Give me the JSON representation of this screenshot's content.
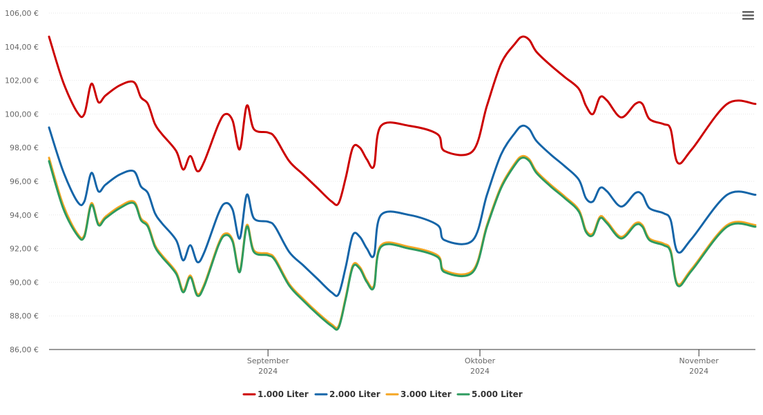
{
  "menu": {
    "icon": "hamburger-menu-icon"
  },
  "chart_data": {
    "type": "line",
    "x_start": "2024-08-01",
    "y_range": [
      86,
      106
    ],
    "y_ticks": [
      86,
      88,
      90,
      92,
      94,
      96,
      98,
      100,
      102,
      104,
      106
    ],
    "y_tick_labels": [
      "86,00 €",
      "88,00 €",
      "90,00 €",
      "92,00 €",
      "94,00 €",
      "96,00 €",
      "98,00 €",
      "100,00 €",
      "102,00 €",
      "104,00 €",
      "106,00 €"
    ],
    "x_ticks": [
      {
        "date": "2024-09-01",
        "label": "September",
        "year": "2024"
      },
      {
        "date": "2024-10-01",
        "label": "Oktober",
        "year": "2024"
      },
      {
        "date": "2024-11-01",
        "label": "November",
        "year": "2024"
      }
    ],
    "grid": true,
    "legend_position": "bottom-center",
    "series": [
      {
        "name": "1.000 Liter",
        "color": "#cc0000",
        "points": [
          [
            "2024-08-01",
            104.6
          ],
          [
            "2024-08-03",
            101.9
          ],
          [
            "2024-08-05",
            100.1
          ],
          [
            "2024-08-06",
            100.0
          ],
          [
            "2024-08-07",
            101.8
          ],
          [
            "2024-08-08",
            100.7
          ],
          [
            "2024-08-09",
            101.1
          ],
          [
            "2024-08-11",
            101.7
          ],
          [
            "2024-08-13",
            101.9
          ],
          [
            "2024-08-14",
            101.0
          ],
          [
            "2024-08-15",
            100.6
          ],
          [
            "2024-08-16",
            99.4
          ],
          [
            "2024-08-17",
            98.8
          ],
          [
            "2024-08-19",
            97.8
          ],
          [
            "2024-08-20",
            96.7
          ],
          [
            "2024-08-21",
            97.5
          ],
          [
            "2024-08-22",
            96.6
          ],
          [
            "2024-08-23",
            97.2
          ],
          [
            "2024-08-25",
            99.4
          ],
          [
            "2024-08-26",
            100.0
          ],
          [
            "2024-08-27",
            99.6
          ],
          [
            "2024-08-28",
            97.9
          ],
          [
            "2024-08-29",
            100.5
          ],
          [
            "2024-08-30",
            99.1
          ],
          [
            "2024-09-01",
            98.9
          ],
          [
            "2024-09-02",
            98.6
          ],
          [
            "2024-09-04",
            97.2
          ],
          [
            "2024-09-06",
            96.4
          ],
          [
            "2024-09-08",
            95.6
          ],
          [
            "2024-09-10",
            94.8
          ],
          [
            "2024-09-11",
            94.7
          ],
          [
            "2024-09-12",
            96.2
          ],
          [
            "2024-09-13",
            98.0
          ],
          [
            "2024-09-14",
            98.0
          ],
          [
            "2024-09-15",
            97.3
          ],
          [
            "2024-09-16",
            96.9
          ],
          [
            "2024-09-17",
            99.3
          ],
          [
            "2024-09-21",
            99.3
          ],
          [
            "2024-09-25",
            98.8
          ],
          [
            "2024-09-26",
            97.8
          ],
          [
            "2024-09-30",
            97.8
          ],
          [
            "2024-10-02",
            100.5
          ],
          [
            "2024-10-04",
            103.0
          ],
          [
            "2024-10-06",
            104.2
          ],
          [
            "2024-10-07",
            104.6
          ],
          [
            "2024-10-08",
            104.4
          ],
          [
            "2024-10-09",
            103.7
          ],
          [
            "2024-10-11",
            102.9
          ],
          [
            "2024-10-13",
            102.2
          ],
          [
            "2024-10-15",
            101.5
          ],
          [
            "2024-10-16",
            100.5
          ],
          [
            "2024-10-17",
            100.0
          ],
          [
            "2024-10-18",
            101.0
          ],
          [
            "2024-10-19",
            100.8
          ],
          [
            "2024-10-21",
            99.8
          ],
          [
            "2024-10-23",
            100.6
          ],
          [
            "2024-10-24",
            100.6
          ],
          [
            "2024-10-25",
            99.7
          ],
          [
            "2024-10-27",
            99.4
          ],
          [
            "2024-10-28",
            99.1
          ],
          [
            "2024-10-29",
            97.1
          ],
          [
            "2024-10-31",
            97.9
          ],
          [
            "2024-11-05",
            100.6
          ],
          [
            "2024-11-09",
            100.6
          ]
        ]
      },
      {
        "name": "2.000 Liter",
        "color": "#1565a8",
        "points": [
          [
            "2024-08-01",
            99.2
          ],
          [
            "2024-08-03",
            96.6
          ],
          [
            "2024-08-05",
            94.8
          ],
          [
            "2024-08-06",
            94.8
          ],
          [
            "2024-08-07",
            96.5
          ],
          [
            "2024-08-08",
            95.4
          ],
          [
            "2024-08-09",
            95.8
          ],
          [
            "2024-08-11",
            96.4
          ],
          [
            "2024-08-13",
            96.6
          ],
          [
            "2024-08-14",
            95.7
          ],
          [
            "2024-08-15",
            95.3
          ],
          [
            "2024-08-16",
            94.1
          ],
          [
            "2024-08-17",
            93.5
          ],
          [
            "2024-08-19",
            92.5
          ],
          [
            "2024-08-20",
            91.3
          ],
          [
            "2024-08-21",
            92.2
          ],
          [
            "2024-08-22",
            91.2
          ],
          [
            "2024-08-23",
            91.8
          ],
          [
            "2024-08-25",
            94.1
          ],
          [
            "2024-08-26",
            94.7
          ],
          [
            "2024-08-27",
            94.3
          ],
          [
            "2024-08-28",
            92.6
          ],
          [
            "2024-08-29",
            95.2
          ],
          [
            "2024-08-30",
            93.8
          ],
          [
            "2024-09-01",
            93.6
          ],
          [
            "2024-09-02",
            93.3
          ],
          [
            "2024-09-04",
            91.8
          ],
          [
            "2024-09-06",
            91.0
          ],
          [
            "2024-09-08",
            90.2
          ],
          [
            "2024-09-10",
            89.4
          ],
          [
            "2024-09-11",
            89.3
          ],
          [
            "2024-09-12",
            90.9
          ],
          [
            "2024-09-13",
            92.8
          ],
          [
            "2024-09-14",
            92.7
          ],
          [
            "2024-09-15",
            92.0
          ],
          [
            "2024-09-16",
            91.6
          ],
          [
            "2024-09-17",
            94.0
          ],
          [
            "2024-09-21",
            94.0
          ],
          [
            "2024-09-25",
            93.4
          ],
          [
            "2024-09-26",
            92.5
          ],
          [
            "2024-09-30",
            92.5
          ],
          [
            "2024-10-02",
            95.2
          ],
          [
            "2024-10-04",
            97.6
          ],
          [
            "2024-10-06",
            98.9
          ],
          [
            "2024-10-07",
            99.3
          ],
          [
            "2024-10-08",
            99.1
          ],
          [
            "2024-10-09",
            98.4
          ],
          [
            "2024-10-11",
            97.6
          ],
          [
            "2024-10-13",
            96.9
          ],
          [
            "2024-10-15",
            96.1
          ],
          [
            "2024-10-16",
            95.0
          ],
          [
            "2024-10-17",
            94.8
          ],
          [
            "2024-10-18",
            95.6
          ],
          [
            "2024-10-19",
            95.4
          ],
          [
            "2024-10-21",
            94.5
          ],
          [
            "2024-10-23",
            95.3
          ],
          [
            "2024-10-24",
            95.2
          ],
          [
            "2024-10-25",
            94.4
          ],
          [
            "2024-10-27",
            94.1
          ],
          [
            "2024-10-28",
            93.7
          ],
          [
            "2024-10-29",
            91.8
          ],
          [
            "2024-10-31",
            92.6
          ],
          [
            "2024-11-05",
            95.2
          ],
          [
            "2024-11-09",
            95.2
          ]
        ]
      },
      {
        "name": "3.000 Liter",
        "color": "#f5a623",
        "points": [
          [
            "2024-08-01",
            97.4
          ],
          [
            "2024-08-03",
            94.6
          ],
          [
            "2024-08-05",
            92.9
          ],
          [
            "2024-08-06",
            92.8
          ],
          [
            "2024-08-07",
            94.7
          ],
          [
            "2024-08-08",
            93.5
          ],
          [
            "2024-08-09",
            93.9
          ],
          [
            "2024-08-11",
            94.5
          ],
          [
            "2024-08-13",
            94.8
          ],
          [
            "2024-08-14",
            93.8
          ],
          [
            "2024-08-15",
            93.4
          ],
          [
            "2024-08-16",
            92.2
          ],
          [
            "2024-08-17",
            91.6
          ],
          [
            "2024-08-19",
            90.6
          ],
          [
            "2024-08-20",
            89.5
          ],
          [
            "2024-08-21",
            90.4
          ],
          [
            "2024-08-22",
            89.3
          ],
          [
            "2024-08-23",
            89.9
          ],
          [
            "2024-08-25",
            92.3
          ],
          [
            "2024-08-26",
            92.9
          ],
          [
            "2024-08-27",
            92.5
          ],
          [
            "2024-08-28",
            90.7
          ],
          [
            "2024-08-29",
            93.4
          ],
          [
            "2024-08-30",
            91.9
          ],
          [
            "2024-09-01",
            91.7
          ],
          [
            "2024-09-02",
            91.4
          ],
          [
            "2024-09-04",
            89.9
          ],
          [
            "2024-09-06",
            89.0
          ],
          [
            "2024-09-08",
            88.2
          ],
          [
            "2024-09-10",
            87.5
          ],
          [
            "2024-09-11",
            87.4
          ],
          [
            "2024-09-12",
            89.1
          ],
          [
            "2024-09-13",
            91.0
          ],
          [
            "2024-09-14",
            90.9
          ],
          [
            "2024-09-15",
            90.1
          ],
          [
            "2024-09-16",
            89.8
          ],
          [
            "2024-09-17",
            92.2
          ],
          [
            "2024-09-21",
            92.1
          ],
          [
            "2024-09-25",
            91.6
          ],
          [
            "2024-09-26",
            90.7
          ],
          [
            "2024-09-30",
            90.7
          ],
          [
            "2024-10-02",
            93.4
          ],
          [
            "2024-10-04",
            95.7
          ],
          [
            "2024-10-06",
            97.1
          ],
          [
            "2024-10-07",
            97.5
          ],
          [
            "2024-10-08",
            97.3
          ],
          [
            "2024-10-09",
            96.6
          ],
          [
            "2024-10-11",
            95.8
          ],
          [
            "2024-10-13",
            95.1
          ],
          [
            "2024-10-15",
            94.3
          ],
          [
            "2024-10-16",
            93.1
          ],
          [
            "2024-10-17",
            92.9
          ],
          [
            "2024-10-18",
            93.9
          ],
          [
            "2024-10-19",
            93.6
          ],
          [
            "2024-10-21",
            92.7
          ],
          [
            "2024-10-23",
            93.5
          ],
          [
            "2024-10-24",
            93.4
          ],
          [
            "2024-10-25",
            92.6
          ],
          [
            "2024-10-27",
            92.3
          ],
          [
            "2024-10-28",
            91.9
          ],
          [
            "2024-10-29",
            89.9
          ],
          [
            "2024-10-31",
            90.8
          ],
          [
            "2024-11-05",
            93.4
          ],
          [
            "2024-11-09",
            93.4
          ]
        ]
      },
      {
        "name": "5.000 Liter",
        "color": "#2e9b5f",
        "points": [
          [
            "2024-08-01",
            97.2
          ],
          [
            "2024-08-03",
            94.4
          ],
          [
            "2024-08-05",
            92.8
          ],
          [
            "2024-08-06",
            92.7
          ],
          [
            "2024-08-07",
            94.6
          ],
          [
            "2024-08-08",
            93.4
          ],
          [
            "2024-08-09",
            93.8
          ],
          [
            "2024-08-11",
            94.4
          ],
          [
            "2024-08-13",
            94.7
          ],
          [
            "2024-08-14",
            93.7
          ],
          [
            "2024-08-15",
            93.3
          ],
          [
            "2024-08-16",
            92.1
          ],
          [
            "2024-08-17",
            91.5
          ],
          [
            "2024-08-19",
            90.5
          ],
          [
            "2024-08-20",
            89.4
          ],
          [
            "2024-08-21",
            90.3
          ],
          [
            "2024-08-22",
            89.2
          ],
          [
            "2024-08-23",
            89.8
          ],
          [
            "2024-08-25",
            92.2
          ],
          [
            "2024-08-26",
            92.8
          ],
          [
            "2024-08-27",
            92.4
          ],
          [
            "2024-08-28",
            90.6
          ],
          [
            "2024-08-29",
            93.3
          ],
          [
            "2024-08-30",
            91.8
          ],
          [
            "2024-09-01",
            91.6
          ],
          [
            "2024-09-02",
            91.3
          ],
          [
            "2024-09-04",
            89.8
          ],
          [
            "2024-09-06",
            88.9
          ],
          [
            "2024-09-08",
            88.1
          ],
          [
            "2024-09-10",
            87.4
          ],
          [
            "2024-09-11",
            87.3
          ],
          [
            "2024-09-12",
            89.0
          ],
          [
            "2024-09-13",
            90.9
          ],
          [
            "2024-09-14",
            90.8
          ],
          [
            "2024-09-15",
            90.0
          ],
          [
            "2024-09-16",
            89.7
          ],
          [
            "2024-09-17",
            92.1
          ],
          [
            "2024-09-21",
            92.0
          ],
          [
            "2024-09-25",
            91.5
          ],
          [
            "2024-09-26",
            90.6
          ],
          [
            "2024-09-30",
            90.6
          ],
          [
            "2024-10-02",
            93.3
          ],
          [
            "2024-10-04",
            95.6
          ],
          [
            "2024-10-06",
            97.0
          ],
          [
            "2024-10-07",
            97.4
          ],
          [
            "2024-10-08",
            97.2
          ],
          [
            "2024-10-09",
            96.5
          ],
          [
            "2024-10-11",
            95.7
          ],
          [
            "2024-10-13",
            95.0
          ],
          [
            "2024-10-15",
            94.2
          ],
          [
            "2024-10-16",
            93.0
          ],
          [
            "2024-10-17",
            92.8
          ],
          [
            "2024-10-18",
            93.8
          ],
          [
            "2024-10-19",
            93.5
          ],
          [
            "2024-10-21",
            92.6
          ],
          [
            "2024-10-23",
            93.4
          ],
          [
            "2024-10-24",
            93.3
          ],
          [
            "2024-10-25",
            92.5
          ],
          [
            "2024-10-27",
            92.2
          ],
          [
            "2024-10-28",
            91.8
          ],
          [
            "2024-10-29",
            89.8
          ],
          [
            "2024-10-31",
            90.7
          ],
          [
            "2024-11-05",
            93.3
          ],
          [
            "2024-11-09",
            93.3
          ]
        ]
      }
    ]
  }
}
